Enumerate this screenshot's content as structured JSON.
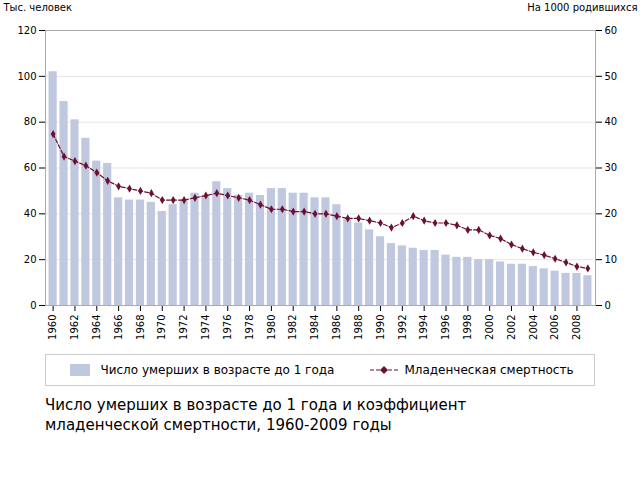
{
  "chart_data": {
    "type": "bar",
    "title": "Число умерших в возрасте до 1 года и коэффициент\nмладенческой смертности, 1960-2009 годы",
    "x": [
      1960,
      1961,
      1962,
      1963,
      1964,
      1965,
      1966,
      1967,
      1968,
      1969,
      1970,
      1971,
      1972,
      1973,
      1974,
      1975,
      1976,
      1977,
      1978,
      1979,
      1980,
      1981,
      1982,
      1983,
      1984,
      1985,
      1986,
      1987,
      1988,
      1989,
      1990,
      1991,
      1992,
      1993,
      1994,
      1995,
      1996,
      1997,
      1998,
      1999,
      2000,
      2001,
      2002,
      2003,
      2004,
      2005,
      2006,
      2007,
      2008,
      2009
    ],
    "xlim": [
      1959.3,
      2009.7
    ],
    "xticks": [
      1960,
      1962,
      1964,
      1966,
      1968,
      1970,
      1972,
      1974,
      1976,
      1978,
      1980,
      1982,
      1984,
      1986,
      1988,
      1990,
      1992,
      1994,
      1996,
      1998,
      2000,
      2002,
      2004,
      2006,
      2008
    ],
    "ylabel": "Тыс. человек",
    "ylim": [
      0,
      120
    ],
    "yticks": [
      0,
      20,
      40,
      60,
      80,
      100,
      120
    ],
    "y2label": "На 1000 родившихся",
    "y2lim": [
      0,
      60
    ],
    "y2ticks": [
      0,
      10,
      20,
      30,
      40,
      50,
      60
    ],
    "grid": true,
    "legend": "bottom",
    "series": [
      {
        "name": "Число умерших в возрасте до 1 года",
        "type": "bar",
        "color": "#c0c8e0",
        "values": [
          102,
          89,
          81,
          73,
          63,
          62,
          47,
          46,
          46,
          45,
          41,
          44,
          46,
          49,
          48,
          54,
          51,
          48,
          49,
          48,
          51,
          51,
          49,
          49,
          47,
          47,
          44,
          38,
          36,
          33,
          30,
          27,
          26,
          25,
          24,
          24,
          22,
          21,
          21,
          20,
          20,
          19,
          18,
          18,
          17,
          16,
          15,
          14,
          14,
          13
        ]
      },
      {
        "name": "Младенческая смертность",
        "type": "line",
        "axis": "y2",
        "color": "#6b1030",
        "marker": "diamond",
        "line_style": "dashed",
        "values": [
          37.4,
          32.5,
          31.5,
          30.5,
          29.0,
          27.2,
          26.0,
          25.5,
          25.0,
          24.5,
          23.0,
          23.0,
          23.0,
          23.5,
          24.0,
          24.5,
          24.0,
          23.5,
          23.0,
          22.0,
          21.0,
          21.0,
          20.5,
          20.5,
          20.0,
          20.0,
          19.5,
          19.0,
          19.0,
          18.5,
          18.0,
          17.0,
          18.0,
          19.5,
          18.5,
          18.0,
          18.0,
          17.5,
          16.5,
          16.5,
          15.3,
          14.6,
          13.3,
          12.4,
          11.6,
          11.0,
          10.2,
          9.4,
          8.5,
          8.1
        ]
      }
    ]
  }
}
